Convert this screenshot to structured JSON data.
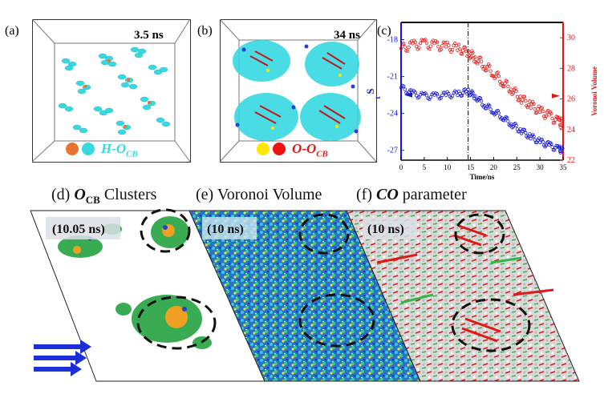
{
  "panels": {
    "a": {
      "label": "(a)",
      "time": "3.5 ns",
      "legend_text": "H-O",
      "legend_sub": "CB",
      "legend_colors": [
        "#e8742e",
        "#36d8e2"
      ]
    },
    "b": {
      "label": "(b)",
      "time": "34 ns",
      "legend_text": "O-O",
      "legend_sub": "CB",
      "legend_colors": [
        "#ffe600",
        "#f01010"
      ]
    },
    "c": {
      "label": "(c)"
    },
    "d": {
      "label": "(d)",
      "title_main": "O",
      "title_sub": "CB",
      "title_rest": " Clusters",
      "time": "(10.05 ns)"
    },
    "e": {
      "label": "(e)",
      "title": "Voronoi Volume",
      "time": "(10 ns)"
    },
    "f": {
      "label": "(f)",
      "title_main": "CO",
      "title_rest": " parameter",
      "time": "(10 ns)"
    }
  },
  "chart_data": {
    "type": "scatter",
    "xlabel": "Time/ns",
    "ylabel_left": "S",
    "ylabel_left_sub": "t",
    "ylabel_right": "Voronoi Volume",
    "xlim": [
      0,
      35
    ],
    "ylim_left": [
      -27.8,
      -16.6
    ],
    "ylim_right": [
      22,
      31
    ],
    "x_ticks": [
      "0",
      "5",
      "10",
      "15",
      "20",
      "25",
      "30",
      "35"
    ],
    "y_left_ticks": [
      "-18",
      "-21",
      "-24",
      "-27"
    ],
    "y_right_ticks": [
      "22",
      "24",
      "26",
      "28",
      "30"
    ],
    "vline_x": 14.5,
    "colors": {
      "left": "#1414d8",
      "right": "#e81414"
    },
    "series": [
      {
        "axis": "right",
        "x": [
          0,
          2.5,
          5,
          7.5,
          10,
          12.5,
          14.5,
          16,
          18,
          20,
          22,
          24,
          26,
          28,
          30,
          32,
          34,
          35
        ],
        "values": [
          29.3,
          29.5,
          29.6,
          29.5,
          29.4,
          29.3,
          29.0,
          28.7,
          28.2,
          27.7,
          27.1,
          26.6,
          26.0,
          25.6,
          25.2,
          24.9,
          24.5,
          24.4
        ]
      },
      {
        "axis": "left",
        "x": [
          0,
          2.5,
          5,
          7.5,
          10,
          12.5,
          14.5,
          16,
          18,
          20,
          22,
          24,
          26,
          28,
          30,
          32,
          34,
          35
        ],
        "values": [
          -21.9,
          -22.4,
          -22.6,
          -22.6,
          -22.5,
          -22.4,
          -22.2,
          -22.6,
          -23.3,
          -23.8,
          -24.3,
          -24.9,
          -25.4,
          -25.9,
          -26.3,
          -26.6,
          -26.9,
          -27.0
        ]
      }
    ]
  }
}
